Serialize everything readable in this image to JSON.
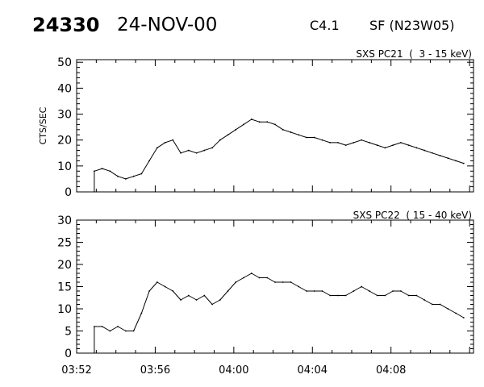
{
  "header": {
    "event_id": "24330",
    "date": "24-NOV-00",
    "goes_class": "C4.1",
    "flare_info": "SF (N23W05)"
  },
  "colors": {
    "line": "#000000",
    "background": "#ffffff"
  },
  "chart_data": [
    {
      "type": "line",
      "title": "SXS PC21  (  3 - 15 keV)",
      "ylabel": "CTS/SEC",
      "xlabel": "",
      "ylim": [
        0,
        51
      ],
      "yticks": [
        0,
        10,
        20,
        30,
        40,
        50
      ],
      "x_tick_labels": [],
      "grid": false,
      "series": [
        {
          "x": [
            "03:52.9",
            "03:53.3",
            "03:53.7",
            "03:54.1",
            "03:54.5",
            "03:54.9",
            "03:55.3",
            "03:55.7",
            "03:56.1",
            "03:56.5",
            "03:56.9",
            "03:57.3",
            "03:57.7",
            "03:58.1",
            "03:58.5",
            "03:58.9",
            "03:59.3",
            "03:59.7",
            "04:00.1",
            "04:00.5",
            "04:00.9",
            "04:01.3",
            "04:01.7",
            "04:02.1",
            "04:02.5",
            "04:02.9",
            "04:03.3",
            "04:03.7",
            "04:04.1",
            "04:04.5",
            "04:04.9",
            "04:05.3",
            "04:05.7",
            "04:06.1",
            "04:06.5",
            "04:06.9",
            "04:07.3",
            "04:07.7",
            "04:08.1",
            "04:08.5",
            "04:08.9",
            "04:09.3",
            "04:09.7",
            "04:10.1",
            "04:10.5",
            "04:10.9",
            "04:11.3",
            "04:11.7"
          ],
          "values": [
            8,
            9,
            8,
            6,
            5,
            6,
            7,
            12,
            17,
            19,
            20,
            15,
            16,
            15,
            16,
            17,
            20,
            22,
            24,
            26,
            28,
            27,
            27,
            26,
            24,
            23,
            22,
            21,
            21,
            20,
            19,
            19,
            18,
            19,
            20,
            19,
            18,
            17,
            18,
            19,
            18,
            17,
            16,
            15,
            14,
            13,
            12,
            11
          ]
        }
      ]
    },
    {
      "type": "line",
      "title": "SXS PC22  ( 15 - 40 keV)",
      "ylabel": "",
      "xlabel": "",
      "ylim": [
        0,
        30
      ],
      "yticks": [
        0,
        5,
        10,
        15,
        20,
        25,
        30
      ],
      "x_tick_labels": [
        "03:52",
        "03:56",
        "04:00",
        "04:04",
        "04:08"
      ],
      "grid": false,
      "series": [
        {
          "x": [
            "03:52.9",
            "03:53.3",
            "03:53.7",
            "03:54.1",
            "03:54.5",
            "03:54.9",
            "03:55.3",
            "03:55.7",
            "03:56.1",
            "03:56.5",
            "03:56.9",
            "03:57.3",
            "03:57.7",
            "03:58.1",
            "03:58.5",
            "03:58.9",
            "03:59.3",
            "03:59.7",
            "04:00.1",
            "04:00.5",
            "04:00.9",
            "04:01.3",
            "04:01.7",
            "04:02.1",
            "04:02.5",
            "04:02.9",
            "04:03.3",
            "04:03.7",
            "04:04.1",
            "04:04.5",
            "04:04.9",
            "04:05.3",
            "04:05.7",
            "04:06.1",
            "04:06.5",
            "04:06.9",
            "04:07.3",
            "04:07.7",
            "04:08.1",
            "04:08.5",
            "04:08.9",
            "04:09.3",
            "04:09.7",
            "04:10.1",
            "04:10.5",
            "04:10.9",
            "04:11.3",
            "04:11.7"
          ],
          "values": [
            6,
            6,
            5,
            6,
            5,
            5,
            9,
            14,
            16,
            15,
            14,
            12,
            13,
            12,
            13,
            11,
            12,
            14,
            16,
            17,
            18,
            17,
            17,
            16,
            16,
            16,
            15,
            14,
            14,
            14,
            13,
            13,
            13,
            14,
            15,
            14,
            13,
            13,
            14,
            14,
            13,
            13,
            12,
            11,
            11,
            10,
            9,
            8
          ]
        }
      ]
    }
  ]
}
